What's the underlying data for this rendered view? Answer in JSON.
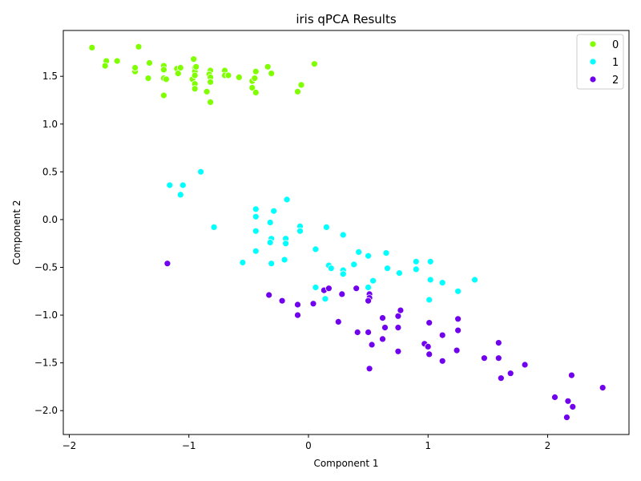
{
  "chart_data": {
    "type": "scatter",
    "title": "iris qPCA Results",
    "xlabel": "Component 1",
    "ylabel": "Component 2",
    "xlim": [
      -2.05,
      2.68
    ],
    "ylim": [
      -2.25,
      1.98
    ],
    "xticks": [
      -2,
      -1,
      0,
      1,
      2
    ],
    "xtick_labels": [
      "−2",
      "−1",
      "0",
      "1",
      "2"
    ],
    "yticks": [
      -2.0,
      -1.5,
      -1.0,
      -0.5,
      0.0,
      0.5,
      1.0,
      1.5
    ],
    "ytick_labels": [
      "−2.0",
      "−1.5",
      "−1.0",
      "−0.5",
      "0.0",
      "0.5",
      "1.0",
      "1.5"
    ],
    "grid": false,
    "legend_position": "top-right",
    "series": [
      {
        "name": "0",
        "color": "#80ff00",
        "points": [
          [
            -1.81,
            1.8
          ],
          [
            -1.42,
            1.81
          ],
          [
            -1.69,
            1.66
          ],
          [
            -1.6,
            1.66
          ],
          [
            -1.7,
            1.61
          ],
          [
            -1.45,
            1.55
          ],
          [
            -1.45,
            1.59
          ],
          [
            -1.33,
            1.64
          ],
          [
            -1.34,
            1.48
          ],
          [
            -1.21,
            1.61
          ],
          [
            -1.21,
            1.57
          ],
          [
            -1.21,
            1.48
          ],
          [
            -1.19,
            1.47
          ],
          [
            -1.21,
            1.3
          ],
          [
            -1.1,
            1.58
          ],
          [
            -1.07,
            1.59
          ],
          [
            -1.09,
            1.53
          ],
          [
            -0.97,
            1.47
          ],
          [
            -0.96,
            1.68
          ],
          [
            -0.95,
            1.59
          ],
          [
            -0.95,
            1.55
          ],
          [
            -0.95,
            1.51
          ],
          [
            -0.95,
            1.42
          ],
          [
            -0.95,
            1.37
          ],
          [
            -0.94,
            1.6
          ],
          [
            -0.85,
            1.34
          ],
          [
            -0.82,
            1.56
          ],
          [
            -0.83,
            1.52
          ],
          [
            -0.82,
            1.49
          ],
          [
            -0.82,
            1.44
          ],
          [
            -0.82,
            1.23
          ],
          [
            -0.7,
            1.56
          ],
          [
            -0.7,
            1.51
          ],
          [
            -0.67,
            1.51
          ],
          [
            -0.58,
            1.49
          ],
          [
            -0.47,
            1.45
          ],
          [
            -0.45,
            1.48
          ],
          [
            -0.44,
            1.55
          ],
          [
            -0.47,
            1.38
          ],
          [
            -0.44,
            1.33
          ],
          [
            -0.34,
            1.6
          ],
          [
            -0.31,
            1.53
          ],
          [
            -0.09,
            1.34
          ],
          [
            -0.06,
            1.41
          ],
          [
            0.05,
            1.63
          ]
        ]
      },
      {
        "name": "1",
        "color": "#00ffff",
        "points": [
          [
            -0.9,
            0.5
          ],
          [
            -1.16,
            0.36
          ],
          [
            -1.05,
            0.36
          ],
          [
            -1.07,
            0.26
          ],
          [
            -0.79,
            -0.08
          ],
          [
            -0.55,
            -0.45
          ],
          [
            -0.44,
            0.11
          ],
          [
            -0.44,
            0.03
          ],
          [
            -0.29,
            0.09
          ],
          [
            -0.32,
            -0.03
          ],
          [
            -0.18,
            0.21
          ],
          [
            -0.44,
            -0.12
          ],
          [
            -0.31,
            -0.2
          ],
          [
            -0.32,
            -0.24
          ],
          [
            -0.44,
            -0.33
          ],
          [
            -0.19,
            -0.2
          ],
          [
            -0.19,
            -0.25
          ],
          [
            -0.2,
            -0.42
          ],
          [
            -0.31,
            -0.46
          ],
          [
            -0.07,
            -0.07
          ],
          [
            -0.07,
            -0.12
          ],
          [
            0.06,
            -0.31
          ],
          [
            0.15,
            -0.08
          ],
          [
            0.17,
            -0.48
          ],
          [
            0.19,
            -0.51
          ],
          [
            0.29,
            -0.16
          ],
          [
            0.29,
            -0.53
          ],
          [
            0.29,
            -0.57
          ],
          [
            0.38,
            -0.47
          ],
          [
            0.42,
            -0.34
          ],
          [
            0.5,
            -0.38
          ],
          [
            0.54,
            -0.64
          ],
          [
            0.65,
            -0.35
          ],
          [
            0.66,
            -0.51
          ],
          [
            0.76,
            -0.56
          ],
          [
            0.9,
            -0.44
          ],
          [
            0.9,
            -0.52
          ],
          [
            1.02,
            -0.44
          ],
          [
            1.02,
            -0.63
          ],
          [
            1.12,
            -0.66
          ],
          [
            1.25,
            -0.75
          ],
          [
            1.39,
            -0.63
          ],
          [
            0.06,
            -0.71
          ],
          [
            0.14,
            -0.83
          ],
          [
            0.5,
            -0.71
          ],
          [
            1.01,
            -0.84
          ]
        ]
      },
      {
        "name": "2",
        "color": "#7000ee",
        "points": [
          [
            -1.18,
            -0.46
          ],
          [
            -0.33,
            -0.79
          ],
          [
            -0.22,
            -0.85
          ],
          [
            -0.09,
            -0.89
          ],
          [
            -0.09,
            -1.0
          ],
          [
            0.04,
            -0.88
          ],
          [
            0.13,
            -0.74
          ],
          [
            0.17,
            -0.72
          ],
          [
            0.28,
            -0.78
          ],
          [
            0.4,
            -0.72
          ],
          [
            0.51,
            -0.78
          ],
          [
            0.51,
            -0.82
          ],
          [
            0.5,
            -0.85
          ],
          [
            0.25,
            -1.07
          ],
          [
            0.41,
            -1.18
          ],
          [
            0.5,
            -1.18
          ],
          [
            0.53,
            -1.31
          ],
          [
            0.51,
            -1.56
          ],
          [
            0.62,
            -1.03
          ],
          [
            0.64,
            -1.13
          ],
          [
            0.62,
            -1.25
          ],
          [
            0.75,
            -1.01
          ],
          [
            0.77,
            -0.95
          ],
          [
            0.75,
            -1.13
          ],
          [
            0.75,
            -1.38
          ],
          [
            0.97,
            -1.3
          ],
          [
            1.0,
            -1.33
          ],
          [
            1.01,
            -1.08
          ],
          [
            1.01,
            -1.41
          ],
          [
            1.12,
            -1.21
          ],
          [
            1.12,
            -1.48
          ],
          [
            1.25,
            -1.04
          ],
          [
            1.25,
            -1.16
          ],
          [
            1.24,
            -1.37
          ],
          [
            1.47,
            -1.45
          ],
          [
            1.59,
            -1.29
          ],
          [
            1.59,
            -1.45
          ],
          [
            1.61,
            -1.66
          ],
          [
            1.69,
            -1.61
          ],
          [
            1.81,
            -1.52
          ],
          [
            2.06,
            -1.86
          ],
          [
            2.17,
            -1.9
          ],
          [
            2.2,
            -1.63
          ],
          [
            2.21,
            -1.96
          ],
          [
            2.16,
            -2.07
          ],
          [
            2.46,
            -1.76
          ]
        ]
      }
    ]
  }
}
